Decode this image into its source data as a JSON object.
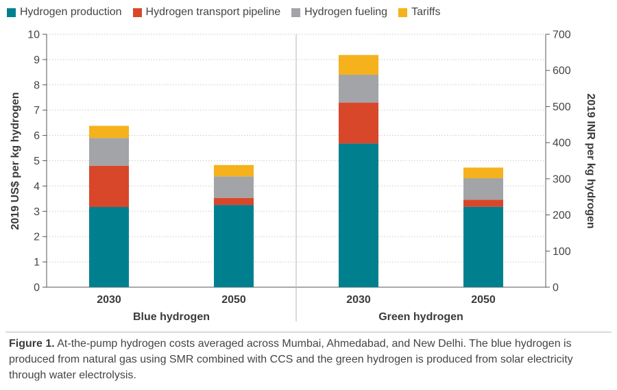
{
  "colors": {
    "production": "#00808f",
    "pipeline": "#d9472b",
    "fueling": "#a3a4a7",
    "tariffs": "#f5b21c",
    "axis": "#555555",
    "grid": "#c8c8c8"
  },
  "legend": [
    {
      "label": "Hydrogen production",
      "color": "#00808f"
    },
    {
      "label": "Hydrogen transport pipeline",
      "color": "#d9472b"
    },
    {
      "label": "Hydrogen fueling",
      "color": "#a3a4a7"
    },
    {
      "label": "Tariffs",
      "color": "#f5b21c"
    }
  ],
  "chart_data": {
    "type": "bar",
    "stacked": true,
    "categories": [
      "2030",
      "2050",
      "2030",
      "2050"
    ],
    "groups": [
      {
        "label": "Blue hydrogen",
        "categories": [
          "2030",
          "2050"
        ]
      },
      {
        "label": "Green hydrogen",
        "categories": [
          "2030",
          "2050"
        ]
      }
    ],
    "series": [
      {
        "name": "Hydrogen production",
        "values": [
          3.17,
          3.25,
          5.68,
          3.18
        ]
      },
      {
        "name": "Hydrogen transport pipeline",
        "values": [
          1.63,
          0.28,
          1.62,
          0.28
        ]
      },
      {
        "name": "Hydrogen fueling",
        "values": [
          1.1,
          0.85,
          1.1,
          0.85
        ]
      },
      {
        "name": "Tariffs",
        "values": [
          0.48,
          0.45,
          0.78,
          0.42
        ]
      }
    ],
    "ylabel": "2019 US$ per kg hydrogen",
    "ylim": [
      0,
      10
    ],
    "yticks": [
      "0",
      "1",
      "2",
      "3",
      "4",
      "5",
      "6",
      "7",
      "8",
      "9",
      "10"
    ],
    "y2label": "2019 INR per kg hydrogen",
    "y2lim": [
      0,
      700
    ],
    "y2ticks": [
      "0",
      "100",
      "200",
      "300",
      "400",
      "500",
      "600",
      "700"
    ],
    "grid": true,
    "legend_position": "top"
  },
  "caption": {
    "label": "Figure 1.",
    "text": " At-the-pump hydrogen costs averaged across Mumbai, Ahmedabad, and New Delhi. The blue hydrogen is produced from natural gas using SMR combined with CCS and the green hydrogen is produced from solar electricity through water electrolysis."
  }
}
